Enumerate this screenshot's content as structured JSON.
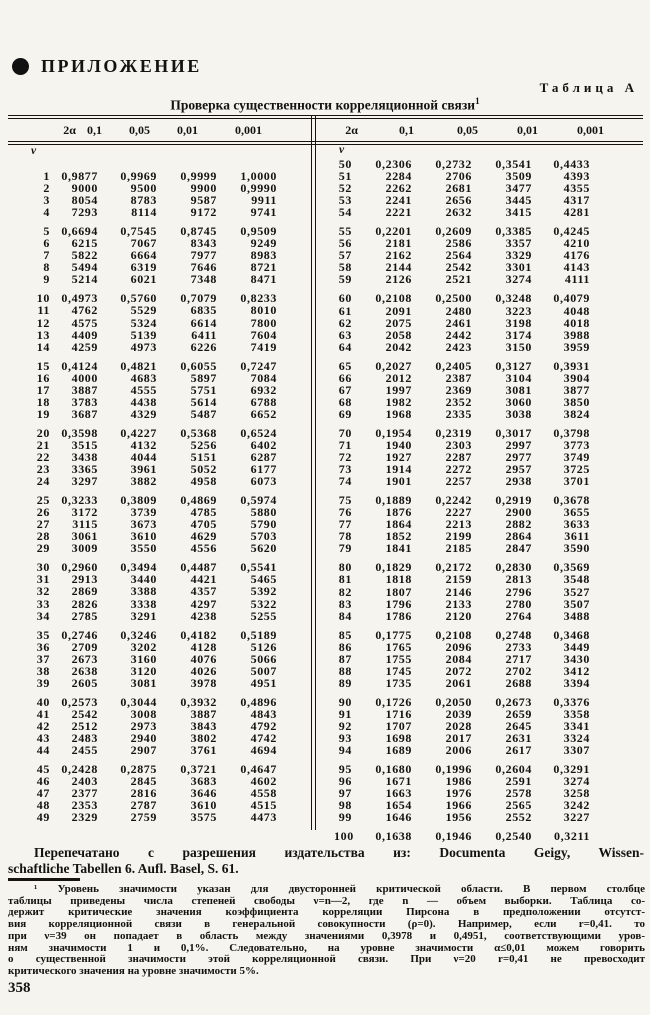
{
  "page": {
    "appendix_label": "ПРИЛОЖЕНИЕ",
    "table_label": "Таблица А",
    "title": "Проверка существенности корреляционной связи",
    "title_mark": "1",
    "page_number": "358"
  },
  "table": {
    "header": {
      "nu_label": "ν",
      "alpha_label": "2α",
      "levels": [
        "0,1",
        "0,05",
        "0,01",
        "0,001"
      ]
    },
    "left_groups": [
      [
        [
          "1",
          "0,9877",
          "0,9969",
          "0,9999",
          "1,0000"
        ],
        [
          "2",
          "9000",
          "9500",
          "9900",
          "0,9990"
        ],
        [
          "3",
          "8054",
          "8783",
          "9587",
          "9911"
        ],
        [
          "4",
          "7293",
          "8114",
          "9172",
          "9741"
        ]
      ],
      [
        [
          "5",
          "0,6694",
          "0,7545",
          "0,8745",
          "0,9509"
        ],
        [
          "6",
          "6215",
          "7067",
          "8343",
          "9249"
        ],
        [
          "7",
          "5822",
          "6664",
          "7977",
          "8983"
        ],
        [
          "8",
          "5494",
          "6319",
          "7646",
          "8721"
        ],
        [
          "9",
          "5214",
          "6021",
          "7348",
          "8471"
        ]
      ],
      [
        [
          "10",
          "0,4973",
          "0,5760",
          "0,7079",
          "0,8233"
        ],
        [
          "11",
          "4762",
          "5529",
          "6835",
          "8010"
        ],
        [
          "12",
          "4575",
          "5324",
          "6614",
          "7800"
        ],
        [
          "13",
          "4409",
          "5139",
          "6411",
          "7604"
        ],
        [
          "14",
          "4259",
          "4973",
          "6226",
          "7419"
        ]
      ],
      [
        [
          "15",
          "0,4124",
          "0,4821",
          "0,6055",
          "0,7247"
        ],
        [
          "16",
          "4000",
          "4683",
          "5897",
          "7084"
        ],
        [
          "17",
          "3887",
          "4555",
          "5751",
          "6932"
        ],
        [
          "18",
          "3783",
          "4438",
          "5614",
          "6788"
        ],
        [
          "19",
          "3687",
          "4329",
          "5487",
          "6652"
        ]
      ],
      [
        [
          "20",
          "0,3598",
          "0,4227",
          "0,5368",
          "0,6524"
        ],
        [
          "21",
          "3515",
          "4132",
          "5256",
          "6402"
        ],
        [
          "22",
          "3438",
          "4044",
          "5151",
          "6287"
        ],
        [
          "23",
          "3365",
          "3961",
          "5052",
          "6177"
        ],
        [
          "24",
          "3297",
          "3882",
          "4958",
          "6073"
        ]
      ],
      [
        [
          "25",
          "0,3233",
          "0,3809",
          "0,4869",
          "0,5974"
        ],
        [
          "26",
          "3172",
          "3739",
          "4785",
          "5880"
        ],
        [
          "27",
          "3115",
          "3673",
          "4705",
          "5790"
        ],
        [
          "28",
          "3061",
          "3610",
          "4629",
          "5703"
        ],
        [
          "29",
          "3009",
          "3550",
          "4556",
          "5620"
        ]
      ],
      [
        [
          "30",
          "0,2960",
          "0,3494",
          "0,4487",
          "0,5541"
        ],
        [
          "31",
          "2913",
          "3440",
          "4421",
          "5465"
        ],
        [
          "32",
          "2869",
          "3388",
          "4357",
          "5392"
        ],
        [
          "33",
          "2826",
          "3338",
          "4297",
          "5322"
        ],
        [
          "34",
          "2785",
          "3291",
          "4238",
          "5255"
        ]
      ],
      [
        [
          "35",
          "0,2746",
          "0,3246",
          "0,4182",
          "0,5189"
        ],
        [
          "36",
          "2709",
          "3202",
          "4128",
          "5126"
        ],
        [
          "37",
          "2673",
          "3160",
          "4076",
          "5066"
        ],
        [
          "38",
          "2638",
          "3120",
          "4026",
          "5007"
        ],
        [
          "39",
          "2605",
          "3081",
          "3978",
          "4951"
        ]
      ],
      [
        [
          "40",
          "0,2573",
          "0,3044",
          "0,3932",
          "0,4896"
        ],
        [
          "41",
          "2542",
          "3008",
          "3887",
          "4843"
        ],
        [
          "42",
          "2512",
          "2973",
          "3843",
          "4792"
        ],
        [
          "43",
          "2483",
          "2940",
          "3802",
          "4742"
        ],
        [
          "44",
          "2455",
          "2907",
          "3761",
          "4694"
        ]
      ],
      [
        [
          "45",
          "0,2428",
          "0,2875",
          "0,3721",
          "0,4647"
        ],
        [
          "46",
          "2403",
          "2845",
          "3683",
          "4602"
        ],
        [
          "47",
          "2377",
          "2816",
          "3646",
          "4558"
        ],
        [
          "48",
          "2353",
          "2787",
          "3610",
          "4515"
        ],
        [
          "49",
          "2329",
          "2759",
          "3575",
          "4473"
        ]
      ]
    ],
    "right_groups": [
      [
        [
          "50",
          "0,2306",
          "0,2732",
          "0,3541",
          "0,4433"
        ],
        [
          "51",
          "2284",
          "2706",
          "3509",
          "4393"
        ],
        [
          "52",
          "2262",
          "2681",
          "3477",
          "4355"
        ],
        [
          "53",
          "2241",
          "2656",
          "3445",
          "4317"
        ],
        [
          "54",
          "2221",
          "2632",
          "3415",
          "4281"
        ]
      ],
      [
        [
          "55",
          "0,2201",
          "0,2609",
          "0,3385",
          "0,4245"
        ],
        [
          "56",
          "2181",
          "2586",
          "3357",
          "4210"
        ],
        [
          "57",
          "2162",
          "2564",
          "3329",
          "4176"
        ],
        [
          "58",
          "2144",
          "2542",
          "3301",
          "4143"
        ],
        [
          "59",
          "2126",
          "2521",
          "3274",
          "4111"
        ]
      ],
      [
        [
          "60",
          "0,2108",
          "0,2500",
          "0,3248",
          "0,4079"
        ],
        [
          "61",
          "2091",
          "2480",
          "3223",
          "4048"
        ],
        [
          "62",
          "2075",
          "2461",
          "3198",
          "4018"
        ],
        [
          "63",
          "2058",
          "2442",
          "3174",
          "3988"
        ],
        [
          "64",
          "2042",
          "2423",
          "3150",
          "3959"
        ]
      ],
      [
        [
          "65",
          "0,2027",
          "0,2405",
          "0,3127",
          "0,3931"
        ],
        [
          "66",
          "2012",
          "2387",
          "3104",
          "3904"
        ],
        [
          "67",
          "1997",
          "2369",
          "3081",
          "3877"
        ],
        [
          "68",
          "1982",
          "2352",
          "3060",
          "3850"
        ],
        [
          "69",
          "1968",
          "2335",
          "3038",
          "3824"
        ]
      ],
      [
        [
          "70",
          "0,1954",
          "0,2319",
          "0,3017",
          "0,3798"
        ],
        [
          "71",
          "1940",
          "2303",
          "2997",
          "3773"
        ],
        [
          "72",
          "1927",
          "2287",
          "2977",
          "3749"
        ],
        [
          "73",
          "1914",
          "2272",
          "2957",
          "3725"
        ],
        [
          "74",
          "1901",
          "2257",
          "2938",
          "3701"
        ]
      ],
      [
        [
          "75",
          "0,1889",
          "0,2242",
          "0,2919",
          "0,3678"
        ],
        [
          "76",
          "1876",
          "2227",
          "2900",
          "3655"
        ],
        [
          "77",
          "1864",
          "2213",
          "2882",
          "3633"
        ],
        [
          "78",
          "1852",
          "2199",
          "2864",
          "3611"
        ],
        [
          "79",
          "1841",
          "2185",
          "2847",
          "3590"
        ]
      ],
      [
        [
          "80",
          "0,1829",
          "0,2172",
          "0,2830",
          "0,3569"
        ],
        [
          "81",
          "1818",
          "2159",
          "2813",
          "3548"
        ],
        [
          "82",
          "1807",
          "2146",
          "2796",
          "3527"
        ],
        [
          "83",
          "1796",
          "2133",
          "2780",
          "3507"
        ],
        [
          "84",
          "1786",
          "2120",
          "2764",
          "3488"
        ]
      ],
      [
        [
          "85",
          "0,1775",
          "0,2108",
          "0,2748",
          "0,3468"
        ],
        [
          "86",
          "1765",
          "2096",
          "2733",
          "3449"
        ],
        [
          "87",
          "1755",
          "2084",
          "2717",
          "3430"
        ],
        [
          "88",
          "1745",
          "2072",
          "2702",
          "3412"
        ],
        [
          "89",
          "1735",
          "2061",
          "2688",
          "3394"
        ]
      ],
      [
        [
          "90",
          "0,1726",
          "0,2050",
          "0,2673",
          "0,3376"
        ],
        [
          "91",
          "1716",
          "2039",
          "2659",
          "3358"
        ],
        [
          "92",
          "1707",
          "2028",
          "2645",
          "3341"
        ],
        [
          "93",
          "1698",
          "2017",
          "2631",
          "3324"
        ],
        [
          "94",
          "1689",
          "2006",
          "2617",
          "3307"
        ]
      ],
      [
        [
          "95",
          "0,1680",
          "0,1996",
          "0,2604",
          "0,3291"
        ],
        [
          "96",
          "1671",
          "1986",
          "2591",
          "3274"
        ],
        [
          "97",
          "1663",
          "1976",
          "2578",
          "3258"
        ],
        [
          "98",
          "1654",
          "1966",
          "2565",
          "3242"
        ],
        [
          "99",
          "1646",
          "1956",
          "2552",
          "3227"
        ]
      ],
      [
        [
          "100",
          "0,1638",
          "0,1946",
          "0,2540",
          "0,3211"
        ]
      ]
    ]
  },
  "credit": {
    "lines": [
      "Перепечатано с разрешения издательства из: Documenta Geigy, Wissen-",
      "schaftliche Tabellen 6. Aufl. Basel, S. 61."
    ]
  },
  "footnote": {
    "lines": [
      "¹ Уровень значимости указан для двусторонней критической области. В первом столбце",
      "таблицы приведены числа степеней свободы ν=n—2, где n — объем выборки. Таблица со-",
      "держит критические значения коэффициента корреляции Пирсона в предположении отсутст-",
      "вия корреляционной связи в генеральной совокупности (ρ=0). Например, если r=0,41. то",
      "при ν=39 он попадает в область между значениями 0,3978 и 0,4951, соответствующими уров-",
      "ням значимости 1 и 0,1%. Следовательно, на уровне значимости α≤0,01 можем говорить",
      "о существенной значимости этой корреляционной связи. При ν=20 r=0,41 не превосходит",
      "критического значения на уровне значимости 5%."
    ]
  }
}
